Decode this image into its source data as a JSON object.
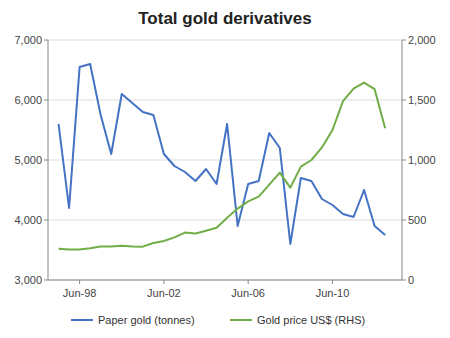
{
  "chart_data": {
    "type": "line",
    "title": "Total gold derivatives",
    "x": [
      1997.5,
      1998.0,
      1998.5,
      1999.0,
      1999.5,
      2000.0,
      2000.5,
      2001.0,
      2001.5,
      2002.0,
      2002.5,
      2003.0,
      2003.5,
      2004.0,
      2004.5,
      2005.0,
      2005.5,
      2006.0,
      2006.5,
      2007.0,
      2007.5,
      2008.0,
      2008.5,
      2009.0,
      2009.5,
      2010.0,
      2010.5,
      2011.0,
      2011.5,
      2012.0,
      2012.5,
      2013.0
    ],
    "series": [
      {
        "name": "Paper gold (tonnes)",
        "color": "#4472C4",
        "values": [
          5600,
          4200,
          6550,
          6600,
          5750,
          5100,
          6100,
          5950,
          5800,
          5750,
          5100,
          4900,
          4800,
          4650,
          4850,
          4600,
          5600,
          3900,
          4600,
          4650,
          5450,
          5200,
          3600,
          4700,
          4650,
          4350,
          4250,
          4100,
          4050,
          4500,
          3900,
          3750
        ]
      },
      {
        "name": "Gold price US$ (RHS)",
        "color": "#70AD47",
        "axis": "y2",
        "values": [
          260,
          255,
          255,
          265,
          280,
          280,
          285,
          280,
          278,
          308,
          325,
          355,
          395,
          388,
          410,
          435,
          518,
          595,
          655,
          695,
          795,
          895,
          770,
          945,
          1000,
          1105,
          1250,
          1490,
          1595,
          1645,
          1590,
          1265
        ]
      }
    ],
    "xlim": [
      1997.0,
      2013.8
    ],
    "xticks": [
      {
        "value": 1998.5,
        "label": "Jun-98"
      },
      {
        "value": 2002.5,
        "label": "Jun-02"
      },
      {
        "value": 2006.5,
        "label": "Jun-06"
      },
      {
        "value": 2010.5,
        "label": "Jun-10"
      }
    ],
    "ylim": [
      3000,
      7000
    ],
    "yticks": [
      {
        "value": 3000,
        "label": "3,000"
      },
      {
        "value": 4000,
        "label": "4,000"
      },
      {
        "value": 5000,
        "label": "5,000"
      },
      {
        "value": 6000,
        "label": "6,000"
      },
      {
        "value": 7000,
        "label": "7,000"
      }
    ],
    "y2lim": [
      0,
      2000
    ],
    "y2ticks": [
      0,
      500,
      {
        "value": 1000,
        "label": "1,000"
      },
      {
        "value": 1500,
        "label": "1,500"
      },
      {
        "value": 2000,
        "label": "2,000"
      }
    ],
    "grid": true,
    "legend": "bottom"
  }
}
